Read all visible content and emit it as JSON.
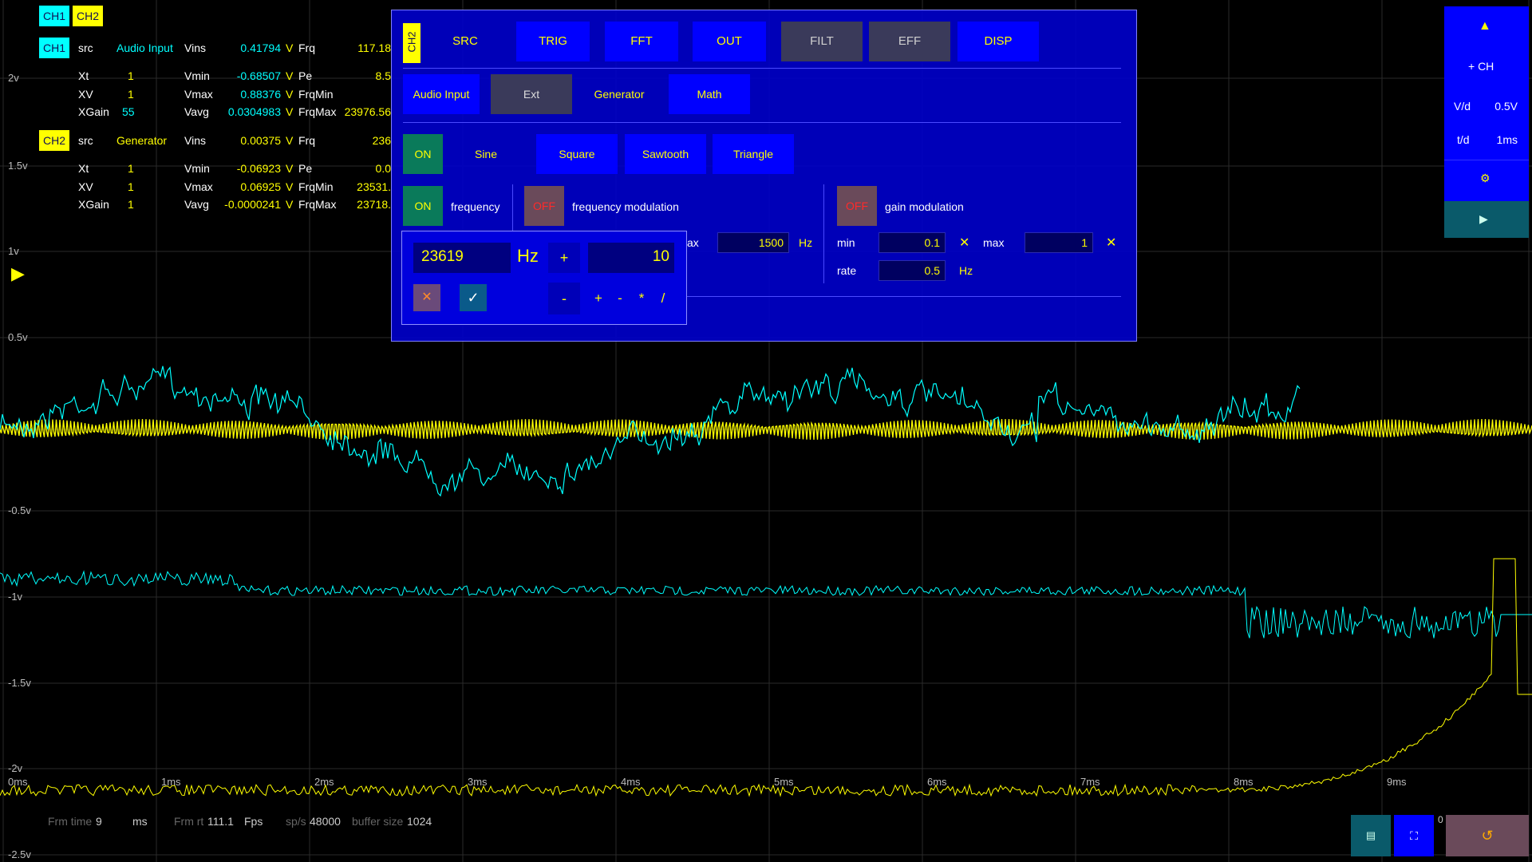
{
  "grid": {
    "y_labels": [
      "2v",
      "1.5v",
      "1v",
      "0.5v",
      "-0.5v",
      "-1v",
      "-1.5v",
      "-2v",
      "-2.5v"
    ],
    "x_labels": [
      "0ms",
      "1ms",
      "2ms",
      "3ms",
      "4ms",
      "5ms",
      "6ms",
      "7ms",
      "8ms",
      "9ms"
    ]
  },
  "channel_tabs": [
    "CH1",
    "CH2"
  ],
  "ch1": {
    "badge": "CH1",
    "src_label": "src",
    "src_value": "Audio Input",
    "xt_label": "Xt",
    "xt_value": "1",
    "xv_label": "XV",
    "xv_value": "1",
    "xgain_label": "XGain",
    "xgain_value": "55",
    "vins_label": "Vins",
    "vins_value": "0.41794",
    "vins_unit": "V",
    "vmin_label": "Vmin",
    "vmin_value": "-0.68507",
    "vmin_unit": "V",
    "vmax_label": "Vmax",
    "vmax_value": "0.88376",
    "vmax_unit": "V",
    "vavg_label": "Vavg",
    "vavg_value": "0.0304983",
    "vavg_unit": "V",
    "frq_label": "Frq",
    "frq_value": "117.18",
    "pe_label": "Pe",
    "pe_value": "8.5",
    "frqmin_label": "FrqMin",
    "frqmin_value": "",
    "frqmax_label": "FrqMax",
    "frqmax_value": "23976.56"
  },
  "ch2": {
    "badge": "CH2",
    "src_label": "src",
    "src_value": "Generator",
    "xt_label": "Xt",
    "xt_value": "1",
    "xv_label": "XV",
    "xv_value": "1",
    "xgain_label": "XGain",
    "xgain_value": "1",
    "vins_label": "Vins",
    "vins_value": "0.00375",
    "vins_unit": "V",
    "vmin_label": "Vmin",
    "vmin_value": "-0.06923",
    "vmin_unit": "V",
    "vmax_label": "Vmax",
    "vmax_value": "0.06925",
    "vmax_unit": "V",
    "vavg_label": "Vavg",
    "vavg_value": "-0.0000241",
    "vavg_unit": "V",
    "frq_label": "Frq",
    "frq_value": "236",
    "pe_label": "Pe",
    "pe_value": "0.0",
    "frqmin_label": "FrqMin",
    "frqmin_value": "23531.",
    "frqmax_label": "FrqMax",
    "frqmax_value": "23718."
  },
  "dialog": {
    "channel": "CH2",
    "tabs": [
      "SRC",
      "TRIG",
      "FFT",
      "OUT",
      "FILT",
      "EFF",
      "DISP"
    ],
    "sources": [
      "Audio Input",
      "Ext",
      "Generator",
      "Math"
    ],
    "on_label": "ON",
    "off_label": "OFF",
    "waveforms": [
      "Sine",
      "Square",
      "Sawtooth",
      "Triangle"
    ],
    "frequency_label": "frequency",
    "freq_mod_label": "frequency modulation",
    "gain_mod_label": "gain modulation",
    "freq_mod_max_label": "ax",
    "freq_mod_max_value": "1500",
    "hz": "Hz",
    "min_label": "min",
    "min_value": "0.1",
    "max_label": "max",
    "max_value": "1",
    "rate_label": "rate",
    "rate_value": "0.5",
    "clear_glyph": "✕"
  },
  "numpad": {
    "value": "23619",
    "unit": "Hz",
    "plus": "+",
    "minus": "-",
    "step": "10",
    "cancel": "✕",
    "ok": "✓",
    "ops": [
      "+",
      "-",
      "*",
      "/"
    ]
  },
  "right_panel": {
    "up": "▲",
    "add_ch": "+ CH",
    "vd_label": "V/d",
    "vd_value": "0.5V",
    "td_label": "t/d",
    "td_value": "1ms",
    "settings_icon": "⚙",
    "play_icon": "▶"
  },
  "status": {
    "frm_time_label": "Frm time",
    "frm_time_value": "9",
    "frm_time_unit": "ms",
    "frm_rt_label": "Frm rt",
    "frm_rt_value": "111.1",
    "frm_rt_unit": "Fps",
    "sps_label": "sp/s",
    "sps_value": "48000",
    "buffer_label": "buffer size",
    "buffer_value": "1024"
  },
  "bottom_buttons": {
    "save": "💾",
    "fullscreen": "⛶",
    "reset": "↺",
    "zero": "0"
  },
  "colors": {
    "ch1": "#00ffff",
    "ch2": "#ffff00",
    "accent": "#0000ff"
  },
  "trigger_marker": "▶"
}
